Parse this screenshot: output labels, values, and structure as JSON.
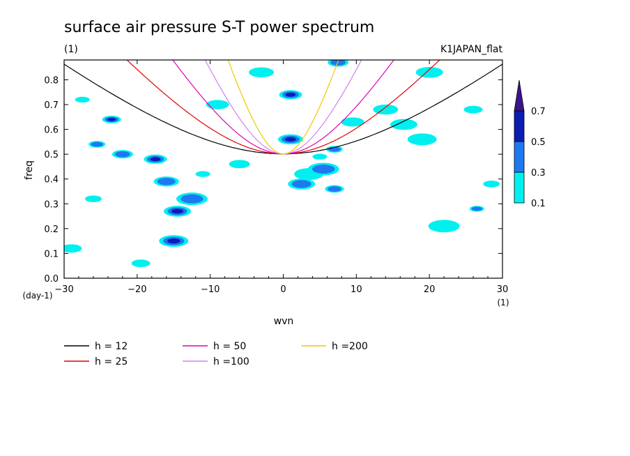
{
  "chart_data": {
    "type": "heatmap",
    "title": "surface air pressure S-T power spectrum",
    "units_left": "(1)",
    "units_right": "K1JAPAN_flat",
    "xlabel": "wvn",
    "ylabel": "freq",
    "x_unit": "(1)",
    "y_unit": "(day-1)",
    "xlim": [
      -30,
      30
    ],
    "ylim": [
      0,
      0.88
    ],
    "x_ticks": [
      -30,
      -20,
      -10,
      0,
      10,
      20,
      30
    ],
    "y_ticks": [
      0.0,
      0.1,
      0.2,
      0.3,
      0.4,
      0.5,
      0.6,
      0.7,
      0.8
    ],
    "x_tick_labels": [
      "−30",
      "−20",
      "−10",
      "0",
      "10",
      "20",
      "30"
    ],
    "y_tick_labels": [
      "0.0",
      "0.1",
      "0.2",
      "0.3",
      "0.4",
      "0.5",
      "0.6",
      "0.7",
      "0.8"
    ],
    "colorbar": {
      "levels": [
        "0.1",
        "0.3",
        "0.5",
        "0.7"
      ],
      "colors": [
        "#00f0f0",
        "#1e78f0",
        "#0a1eb4",
        "#3c148c"
      ]
    },
    "contour_patches": [
      {
        "x": -27.5,
        "y": 0.72,
        "level": 0
      },
      {
        "x": -25.5,
        "y": 0.54,
        "level": 1
      },
      {
        "x": -23.5,
        "y": 0.64,
        "level": 2
      },
      {
        "x": -22.0,
        "y": 0.5,
        "level": 1
      },
      {
        "x": -17.5,
        "y": 0.48,
        "level": 2
      },
      {
        "x": -16.0,
        "y": 0.39,
        "level": 1
      },
      {
        "x": -14.5,
        "y": 0.27,
        "level": 2
      },
      {
        "x": -15.0,
        "y": 0.15,
        "level": 2
      },
      {
        "x": -12.5,
        "y": 0.32,
        "level": 1
      },
      {
        "x": -11.0,
        "y": 0.42,
        "level": 0
      },
      {
        "x": -26.0,
        "y": 0.32,
        "level": 0
      },
      {
        "x": -19.5,
        "y": 0.06,
        "level": 0
      },
      {
        "x": -6.0,
        "y": 0.46,
        "level": 0
      },
      {
        "x": 1.0,
        "y": 0.74,
        "level": 2
      },
      {
        "x": 1.0,
        "y": 0.56,
        "level": 2
      },
      {
        "x": 2.5,
        "y": 0.38,
        "level": 1
      },
      {
        "x": 3.5,
        "y": 0.42,
        "level": 0
      },
      {
        "x": 5.5,
        "y": 0.44,
        "level": 1
      },
      {
        "x": 5.0,
        "y": 0.49,
        "level": 0
      },
      {
        "x": 7.0,
        "y": 0.52,
        "level": 1
      },
      {
        "x": 7.0,
        "y": 0.36,
        "level": 1
      },
      {
        "x": 7.5,
        "y": 0.87,
        "level": 1
      },
      {
        "x": 9.5,
        "y": 0.63,
        "level": 0
      },
      {
        "x": 14.0,
        "y": 0.68,
        "level": 0
      },
      {
        "x": 16.5,
        "y": 0.62,
        "level": 0
      },
      {
        "x": 19.0,
        "y": 0.56,
        "level": 0
      },
      {
        "x": 22.0,
        "y": 0.21,
        "level": 0
      },
      {
        "x": 26.5,
        "y": 0.28,
        "level": 1
      },
      {
        "x": 28.5,
        "y": 0.38,
        "level": 0
      },
      {
        "x": 26.0,
        "y": 0.68,
        "level": 0
      },
      {
        "x": -29.0,
        "y": 0.12,
        "level": 0
      },
      {
        "x": -9.0,
        "y": 0.7,
        "level": 0
      },
      {
        "x": -3.0,
        "y": 0.83,
        "level": 0
      },
      {
        "x": 20.0,
        "y": 0.83,
        "level": 0
      }
    ],
    "dispersion_curves": [
      {
        "name": "h = 12",
        "h": 12,
        "color": "#000000"
      },
      {
        "name": "h = 25",
        "h": 25,
        "color": "#e00000"
      },
      {
        "name": "h = 50",
        "h": 50,
        "color": "#e000b4"
      },
      {
        "name": "h =100",
        "h": 100,
        "color": "#d27ff0"
      },
      {
        "name": "h =200",
        "h": 200,
        "color": "#f0c800"
      }
    ],
    "legend_placement": "bottom",
    "grid": false
  }
}
